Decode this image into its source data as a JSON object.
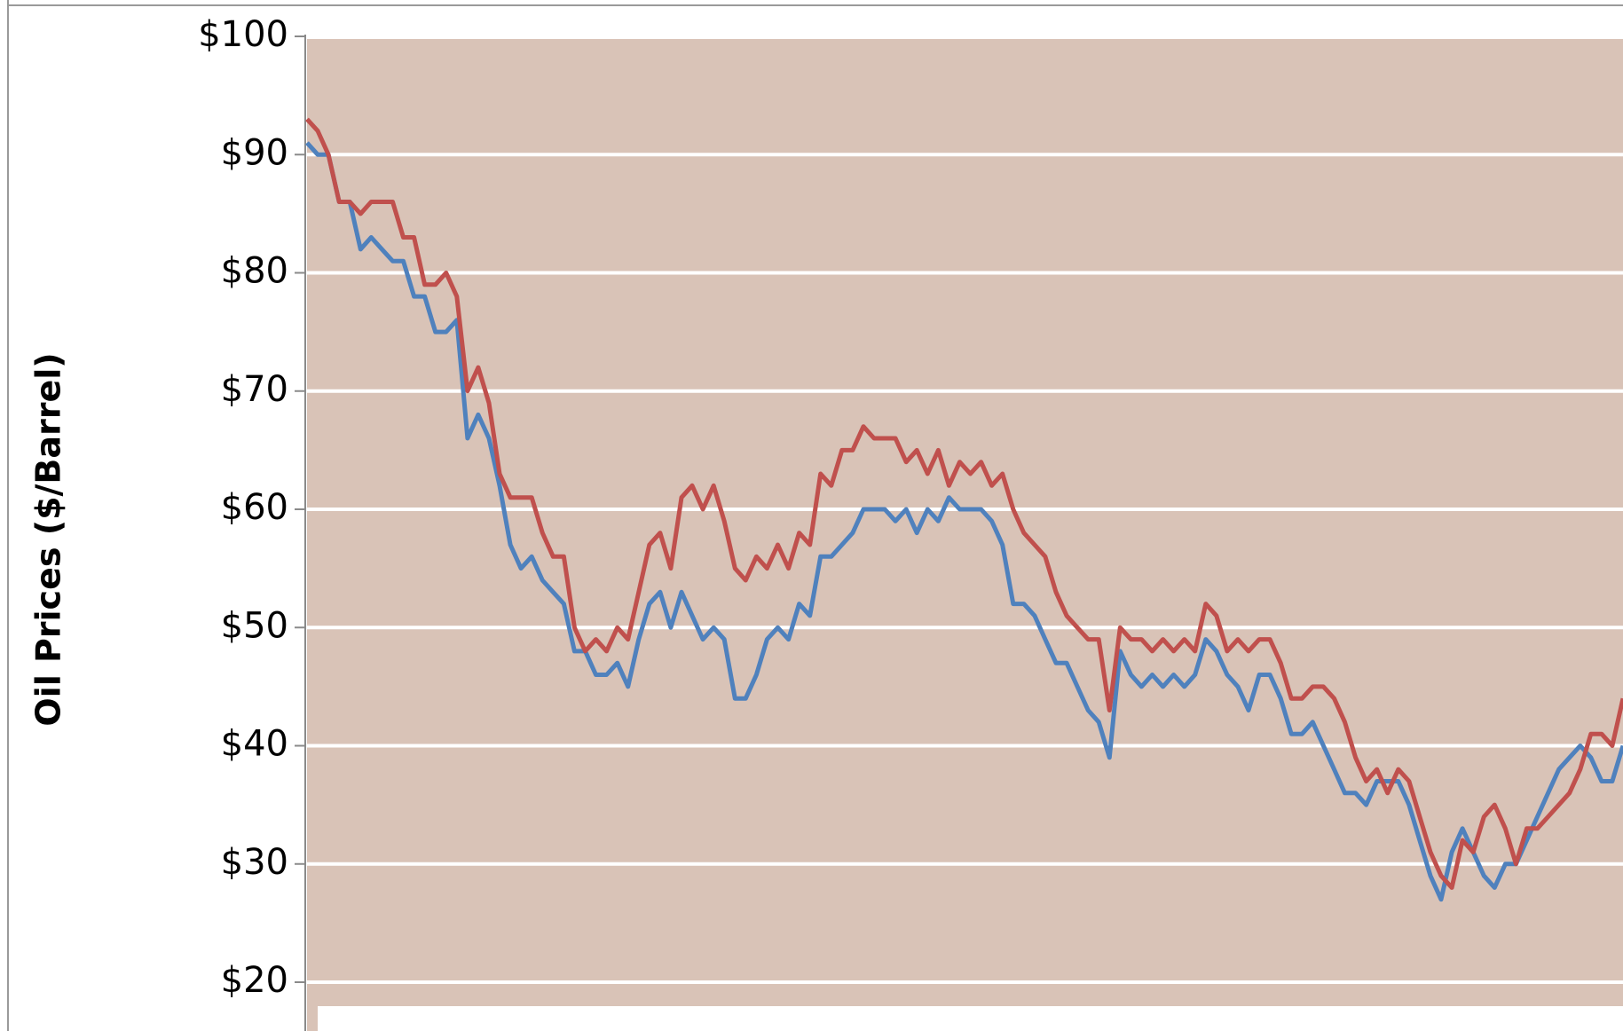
{
  "chart_data": {
    "type": "line",
    "y_label": "Oil Prices ($/Barrel)",
    "ylim": [
      16,
      100
    ],
    "yticks": [
      {
        "value": 20,
        "label": "$20"
      },
      {
        "value": 30,
        "label": "$30"
      },
      {
        "value": 40,
        "label": "$40"
      },
      {
        "value": 50,
        "label": "$50"
      },
      {
        "value": 60,
        "label": "$60"
      },
      {
        "value": 70,
        "label": "$70"
      },
      {
        "value": 80,
        "label": "$80"
      },
      {
        "value": 90,
        "label": "$90"
      },
      {
        "value": 100,
        "label": "$100"
      }
    ],
    "grid": true,
    "background": "#d9c3b7",
    "series": [
      {
        "color": "#4f81bd",
        "values": [
          91,
          90,
          90,
          86,
          86,
          82,
          83,
          82,
          81,
          81,
          78,
          78,
          75,
          75,
          76,
          66,
          68,
          66,
          62,
          57,
          55,
          56,
          54,
          53,
          52,
          48,
          48,
          46,
          46,
          47,
          45,
          49,
          52,
          53,
          50,
          53,
          51,
          49,
          50,
          49,
          44,
          44,
          46,
          49,
          50,
          49,
          52,
          51,
          56,
          56,
          57,
          58,
          60,
          60,
          60,
          59,
          60,
          58,
          60,
          59,
          61,
          60,
          60,
          60,
          59,
          57,
          52,
          52,
          51,
          49,
          47,
          47,
          45,
          43,
          42,
          39,
          48,
          46,
          45,
          46,
          45,
          46,
          45,
          46,
          49,
          48,
          46,
          45,
          43,
          46,
          46,
          44,
          41,
          41,
          42,
          40,
          38,
          36,
          36,
          35,
          37,
          37,
          37,
          35,
          32,
          29,
          27,
          31,
          33,
          31,
          29,
          28,
          30,
          30,
          32,
          34,
          36,
          38,
          39,
          40,
          39,
          37,
          37,
          40
        ]
      },
      {
        "color": "#c0504d",
        "values": [
          93,
          92,
          90,
          86,
          86,
          85,
          86,
          86,
          86,
          83,
          83,
          79,
          79,
          80,
          78,
          70,
          72,
          69,
          63,
          61,
          61,
          61,
          58,
          56,
          56,
          50,
          48,
          49,
          48,
          50,
          49,
          53,
          57,
          58,
          55,
          61,
          62,
          60,
          62,
          59,
          55,
          54,
          56,
          55,
          57,
          55,
          58,
          57,
          63,
          62,
          65,
          65,
          67,
          66,
          66,
          66,
          64,
          65,
          63,
          65,
          62,
          64,
          63,
          64,
          62,
          63,
          60,
          58,
          57,
          56,
          53,
          51,
          50,
          49,
          49,
          43,
          50,
          49,
          49,
          48,
          49,
          48,
          49,
          48,
          52,
          51,
          48,
          49,
          48,
          49,
          49,
          47,
          44,
          44,
          45,
          45,
          44,
          42,
          39,
          37,
          38,
          36,
          38,
          37,
          34,
          31,
          29,
          28,
          32,
          31,
          34,
          35,
          33,
          30,
          33,
          33,
          34,
          35,
          36,
          38,
          41,
          41,
          40,
          44
        ]
      }
    ]
  }
}
